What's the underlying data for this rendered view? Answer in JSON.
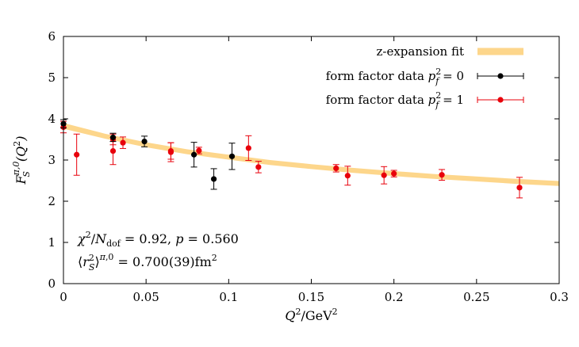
{
  "chart_data": {
    "type": "scatter",
    "xlabel": "Q²/GeV²",
    "ylabel": "F_S^{π,0}(Q²)",
    "xlim": [
      0,
      0.3
    ],
    "ylim": [
      0,
      6
    ],
    "x_ticks": [
      "0",
      "0.05",
      "0.1",
      "0.15",
      "0.2",
      "0.25",
      "0.3"
    ],
    "y_ticks": [
      "0",
      "1",
      "2",
      "3",
      "4",
      "5",
      "6"
    ],
    "legend_position": "top-right",
    "colors": {
      "fit_band": "#fdd68b",
      "series_p0": "#000000",
      "series_p1": "#e8000b"
    },
    "fit": {
      "name": "z-expansion fit",
      "x": [
        0.0,
        0.025,
        0.05,
        0.075,
        0.1,
        0.125,
        0.15,
        0.175,
        0.2,
        0.225,
        0.25,
        0.275,
        0.3
      ],
      "y": [
        3.83,
        3.58,
        3.37,
        3.2,
        3.07,
        2.94,
        2.84,
        2.75,
        2.67,
        2.6,
        2.54,
        2.48,
        2.43
      ],
      "upper": [
        3.9,
        3.64,
        3.43,
        3.26,
        3.13,
        3.0,
        2.9,
        2.81,
        2.73,
        2.66,
        2.6,
        2.54,
        2.49
      ],
      "lower": [
        3.76,
        3.52,
        3.31,
        3.14,
        3.01,
        2.88,
        2.78,
        2.69,
        2.61,
        2.54,
        2.48,
        2.42,
        2.37
      ]
    },
    "series": [
      {
        "name": "form factor data p_f² = 0",
        "x": [
          0.0,
          0.03,
          0.049,
          0.079,
          0.091,
          0.102
        ],
        "y": [
          3.88,
          3.55,
          3.45,
          3.13,
          2.54,
          3.09
        ],
        "err": [
          0.1,
          0.1,
          0.13,
          0.3,
          0.25,
          0.32
        ]
      },
      {
        "name": "form factor data p_f² = 1",
        "x": [
          0.0,
          0.008,
          0.03,
          0.03,
          0.036,
          0.065,
          0.065,
          0.082,
          0.112,
          0.118,
          0.165,
          0.172,
          0.194,
          0.2,
          0.229,
          0.276
        ],
        "y": [
          3.8,
          3.13,
          3.5,
          3.22,
          3.42,
          3.22,
          3.19,
          3.23,
          3.29,
          2.83,
          2.8,
          2.62,
          2.63,
          2.67,
          2.64,
          2.33
        ],
        "err": [
          0.14,
          0.5,
          0.13,
          0.33,
          0.14,
          0.2,
          0.23,
          0.08,
          0.3,
          0.14,
          0.09,
          0.23,
          0.21,
          0.08,
          0.13,
          0.25
        ]
      }
    ],
    "annotations": [
      "χ²/N_dof = 0.92,  p = 0.560",
      "⟨r_S²⟩^{π,0} = 0.700(39)fm²"
    ]
  }
}
